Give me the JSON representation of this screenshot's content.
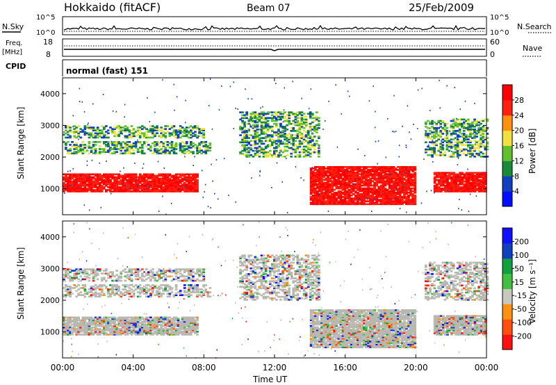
{
  "header": {
    "site": "Hokkaido (fitACF)",
    "beam": "Beam 07",
    "date": "25/Feb/2009"
  },
  "noise_panel": {
    "left_label": "N.Sky",
    "right_label": "N.Search",
    "left_ticks": [
      "10^5",
      "10^0"
    ],
    "right_ticks": [
      "10^5",
      "10^0"
    ]
  },
  "freq_panel": {
    "left_label_1": "Freq.",
    "left_label_2": "[MHz]",
    "right_label": "Nave",
    "left_ticks": [
      "18",
      "8"
    ],
    "right_ticks": [
      "60",
      "0"
    ]
  },
  "cpid_panel": {
    "label": "CPID",
    "text": "normal (fast) 151"
  },
  "power_panel": {
    "ylabel": "Slant Range [km]",
    "cbar_label": "Power [dB]",
    "cbar_ticks": [
      "28",
      "24",
      "20",
      "16",
      "12",
      "8",
      "4"
    ]
  },
  "velocity_panel": {
    "ylabel": "Slant Range [km]",
    "cbar_label": "Velocity [m s⁻¹]",
    "cbar_ticks": [
      "200",
      "100",
      "50",
      "15",
      "-15",
      "-50",
      "-100",
      "-200"
    ]
  },
  "xaxis": {
    "label": "Time UT",
    "ticks": [
      "00:00",
      "04:00",
      "08:00",
      "12:00",
      "16:00",
      "20:00",
      "00:00"
    ]
  },
  "chart_data": [
    {
      "type": "heatmap",
      "quantity": "Power",
      "xlim_hours": [
        0,
        24
      ],
      "ylim_km": [
        180,
        4500
      ],
      "y_ticks": [
        1000,
        2000,
        3000,
        4000
      ],
      "colorscale": [
        "#0010ff",
        "#1040c0",
        "#1a8a3a",
        "#60c030",
        "#f0e040",
        "#ff9010",
        "#ff2010",
        "#ff0000"
      ],
      "echo_regions": [
        {
          "t0": 0.0,
          "t1": 7.6,
          "r0": 900,
          "r1": 1450,
          "level": "high"
        },
        {
          "t0": 0.0,
          "t1": 8.3,
          "r0": 2100,
          "r1": 2500,
          "level": "medium"
        },
        {
          "t0": 0.0,
          "t1": 8.0,
          "r0": 2600,
          "r1": 3000,
          "level": "medium"
        },
        {
          "t0": 10.0,
          "t1": 14.5,
          "r0": 2000,
          "r1": 3400,
          "level": "medium"
        },
        {
          "t0": 14.0,
          "t1": 20.0,
          "r0": 500,
          "r1": 1700,
          "level": "high"
        },
        {
          "t0": 21.0,
          "t1": 24.0,
          "r0": 900,
          "r1": 1500,
          "level": "high"
        },
        {
          "t0": 20.5,
          "t1": 24.0,
          "r0": 2000,
          "r1": 3200,
          "level": "medium"
        }
      ]
    },
    {
      "type": "heatmap",
      "quantity": "Velocity",
      "xlim_hours": [
        0,
        24
      ],
      "ylim_km": [
        180,
        4500
      ],
      "y_ticks": [
        1000,
        2000,
        3000,
        4000
      ],
      "colorscale": [
        "#ff1010",
        "#ff5010",
        "#ff9010",
        "#c8c8c0",
        "#40c040",
        "#10a040",
        "#1040c0",
        "#1010ff"
      ],
      "ground_scatter_color": "#b8b8b0"
    }
  ]
}
